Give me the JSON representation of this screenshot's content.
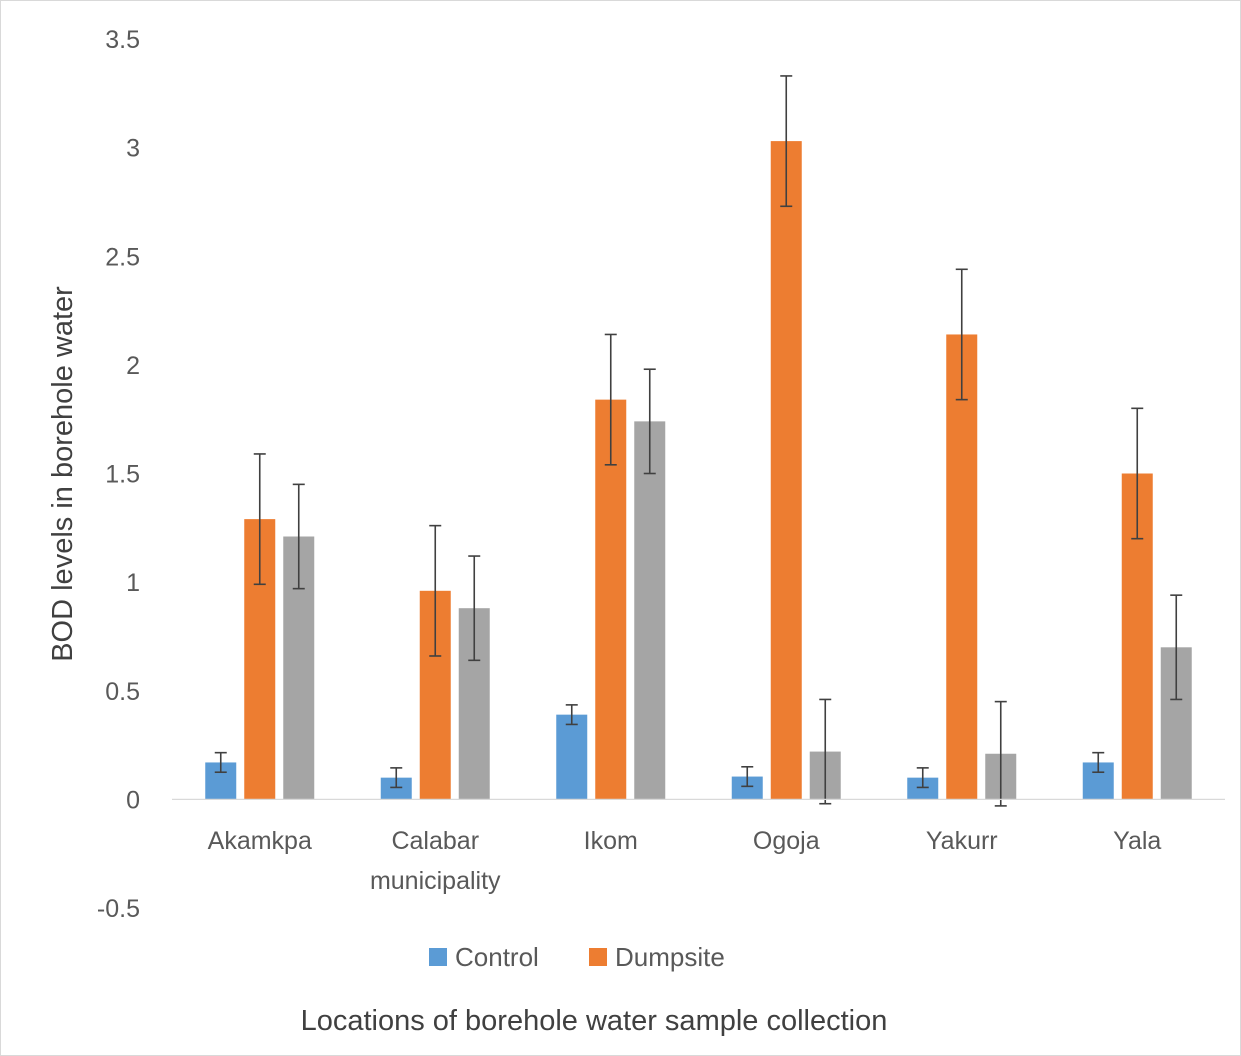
{
  "chart_data": {
    "type": "bar",
    "categories": [
      "Akamkpa",
      "Calabar municipality",
      "Ikom",
      "Ogoja",
      "Yakurr",
      "Yala"
    ],
    "series": [
      {
        "name": "Control",
        "color": "#5B9BD5",
        "values": [
          0.17,
          0.1,
          0.39,
          0.105,
          0.1,
          0.17
        ],
        "errors": [
          0.045,
          0.045,
          0.045,
          0.045,
          0.045,
          0.045
        ]
      },
      {
        "name": "Dumpsite",
        "color": "#ED7D31",
        "values": [
          1.29,
          0.96,
          1.84,
          3.03,
          2.14,
          1.5
        ],
        "errors": [
          0.3,
          0.3,
          0.3,
          0.3,
          0.3,
          0.3
        ]
      },
      {
        "color": "#A5A5A5",
        "values": [
          1.21,
          0.88,
          1.74,
          0.22,
          0.21,
          0.7
        ],
        "errors": [
          0.24,
          0.24,
          0.24,
          0.24,
          0.24,
          0.24
        ]
      }
    ],
    "ylim": [
      -0.5,
      3.5
    ],
    "yticks": [
      "-0.5",
      "0",
      "0.5",
      "1",
      "1.5",
      "2",
      "2.5",
      "3",
      "3.5"
    ],
    "ylabel": "BOD levels in borehole water",
    "xlabel": "Locations of borehole water sample collection",
    "legend_placement": "bottom-center",
    "grid": false
  }
}
